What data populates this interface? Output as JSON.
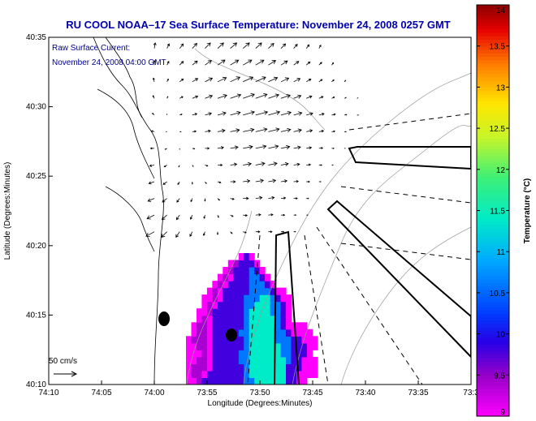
{
  "title": "RU COOL  NOAA–17  Sea Surface Temperature:  November 24, 2008 0257 GMT",
  "annotation": {
    "line1": "Raw Surface Current:",
    "line2": "November 24, 2008 04:00 GMT"
  },
  "scale_label": "50 cm/s",
  "colors": {
    "title": "#0000b0",
    "annotation": "#00008b",
    "land": "#ffffff",
    "axes": "#000000"
  },
  "icons": [
    "scale-arrow-icon",
    "station-marker-icon"
  ],
  "chart_data": {
    "type": "heatmap",
    "title": "RU COOL  NOAA–17  Sea Surface Temperature:  November 24, 2008 0257 GMT",
    "xlabel": "Longitude (Degrees:Minutes)",
    "ylabel": "Latitude (Degrees:Minutes)",
    "x_ticks": [
      {
        "v": -74.1667,
        "label": "74:10"
      },
      {
        "v": -74.0833,
        "label": "74:05"
      },
      {
        "v": -74.0,
        "label": "74:00"
      },
      {
        "v": -73.9167,
        "label": "73:55"
      },
      {
        "v": -73.8333,
        "label": "73:50"
      },
      {
        "v": -73.75,
        "label": "73:45"
      },
      {
        "v": -73.6667,
        "label": "73:40"
      },
      {
        "v": -73.5833,
        "label": "73:35"
      },
      {
        "v": -73.5,
        "label": "73:3"
      }
    ],
    "y_ticks": [
      {
        "v": 40.5833,
        "label": "40:35"
      },
      {
        "v": 40.5,
        "label": "40:30"
      },
      {
        "v": 40.4167,
        "label": "40:25"
      },
      {
        "v": 40.3333,
        "label": "40:20"
      },
      {
        "v": 40.25,
        "label": "40:15"
      },
      {
        "v": 40.1667,
        "label": "40:10"
      }
    ],
    "xlim": [
      -74.1667,
      -73.5
    ],
    "ylim": [
      40.1667,
      40.5833
    ],
    "colorbar": {
      "label": "Temperature (°C)",
      "range": [
        9,
        14
      ],
      "ticks": [
        {
          "v": 9,
          "label": "9"
        },
        {
          "v": 9.5,
          "label": "9.5"
        },
        {
          "v": 10,
          "label": "10"
        },
        {
          "v": 10.5,
          "label": "10.5"
        },
        {
          "v": 11,
          "label": "11"
        },
        {
          "v": 11.5,
          "label": "11.5"
        },
        {
          "v": 12,
          "label": "12"
        },
        {
          "v": 12.5,
          "label": "12.5"
        },
        {
          "v": 13,
          "label": "13"
        },
        {
          "v": 13.5,
          "label": "13.5"
        },
        {
          "v": 14,
          "label": "14"
        }
      ]
    },
    "sst_grid": {
      "lon0": -73.95,
      "lat0": 40.1667,
      "dlon": 0.0083,
      "dlat": 0.0083,
      "rows": [
        "aa9bbbbbbbbccddddddbbaa.....",
        "a99abbbbbbbcdddddddbbaaaa...",
        "a999abbbbbbcdddddddbbbaaa...",
        "aa99abbbbbccdddddddcbbaaa...",
        "aaa9abbbbbccddddddccbbba....",
        "aa99abbbbbbcddddddccbbbaa...",
        "a999abbbbbbcdddddcccbbaaa...",
        ".a99abbbbbccdddddccbaaaa....",
        ".a99abbbbbbcdddddcbaaaa.....",
        "..a9abbbbbbcdddddcba........",
        "..aa9bbbbbbcddddccba........",
        "...a9abbbbbccdddccba........",
        "...aa9abbbbcccddcbaa........",
        "....a9abbbbbccccbaa.........",
        ".....a9abbbbcccba...........",
        "......a9abbbccba............",
        ".......a9bbbcba.............",
        "........a9bbba..............",
        "..........aba...............",
        "............................"
      ],
      "legend": {
        "a": 9.0,
        "9": 9.4,
        "b": 9.8,
        "c": 10.6,
        "d": 11.4
      }
    },
    "currents": {
      "lon0": -74.0,
      "lat0": 40.35,
      "dlon": 0.02,
      "dlat": 0.02,
      "u": [
        [
          -18,
          -12,
          -8,
          -5,
          -3,
          0,
          4,
          7,
          9,
          8,
          6,
          4,
          0,
          0,
          0,
          0,
          0,
          0,
          0,
          0,
          0,
          0
        ],
        [
          -16,
          -11,
          -7,
          -4,
          -2,
          2,
          6,
          9,
          11,
          10,
          8,
          5,
          3,
          0,
          0,
          0,
          0,
          0,
          0,
          0,
          0,
          0
        ],
        [
          -14,
          -10,
          -6,
          -3,
          0,
          4,
          8,
          12,
          14,
          13,
          10,
          8,
          5,
          0,
          0,
          0,
          0,
          0,
          0,
          0,
          0,
          0
        ],
        [
          -12,
          -8,
          -4,
          0,
          3,
          7,
          11,
          15,
          17,
          16,
          13,
          10,
          7,
          4,
          0,
          0,
          0,
          0,
          0,
          0,
          0,
          0
        ],
        [
          -10,
          -6,
          -2,
          2,
          6,
          10,
          14,
          18,
          20,
          19,
          16,
          13,
          9,
          6,
          3,
          0,
          0,
          0,
          0,
          0,
          0,
          0
        ],
        [
          -8,
          -4,
          0,
          5,
          9,
          13,
          17,
          21,
          23,
          22,
          19,
          15,
          11,
          8,
          5,
          2,
          0,
          0,
          0,
          0,
          0,
          0
        ],
        [
          -6,
          -2,
          3,
          8,
          12,
          16,
          20,
          24,
          25,
          24,
          21,
          17,
          13,
          10,
          7,
          4,
          0,
          0,
          0,
          0,
          0,
          0
        ],
        [
          -4,
          0,
          5,
          10,
          14,
          18,
          22,
          25,
          26,
          25,
          22,
          18,
          14,
          11,
          8,
          5,
          3,
          0,
          0,
          0,
          0,
          0
        ],
        [
          -3,
          2,
          7,
          12,
          16,
          20,
          23,
          25,
          25,
          23,
          20,
          16,
          12,
          9,
          6,
          4,
          2,
          0,
          0,
          0,
          0,
          0
        ],
        [
          -2,
          3,
          8,
          12,
          16,
          19,
          21,
          22,
          22,
          20,
          17,
          14,
          10,
          7,
          5,
          3,
          0,
          0,
          0,
          0,
          0,
          0
        ],
        [
          0,
          4,
          8,
          11,
          14,
          16,
          18,
          19,
          18,
          16,
          14,
          11,
          8,
          6,
          4,
          0,
          0,
          0,
          0,
          0,
          0,
          0
        ],
        [
          2,
          5,
          8,
          10,
          12,
          13,
          14,
          14,
          13,
          12,
          10,
          8,
          6,
          4,
          0,
          0,
          0,
          0,
          0,
          0,
          0,
          0
        ]
      ],
      "v": [
        [
          -10,
          -12,
          -12,
          -10,
          -8,
          -6,
          -4,
          -2,
          0,
          0,
          0,
          0,
          0,
          0,
          0,
          0,
          0,
          0,
          0,
          0,
          0,
          0
        ],
        [
          -8,
          -10,
          -10,
          -9,
          -7,
          -5,
          -3,
          -1,
          1,
          1,
          0,
          0,
          0,
          0,
          0,
          0,
          0,
          0,
          0,
          0,
          0,
          0
        ],
        [
          -6,
          -8,
          -8,
          -7,
          -6,
          -4,
          -2,
          0,
          2,
          2,
          1,
          0,
          0,
          0,
          0,
          0,
          0,
          0,
          0,
          0,
          0,
          0
        ],
        [
          -4,
          -6,
          -6,
          -5,
          -4,
          -2,
          0,
          2,
          3,
          3,
          2,
          1,
          0,
          0,
          0,
          0,
          0,
          0,
          0,
          0,
          0,
          0
        ],
        [
          -2,
          -4,
          -4,
          -3,
          -2,
          0,
          2,
          3,
          4,
          4,
          3,
          2,
          1,
          0,
          0,
          0,
          0,
          0,
          0,
          0,
          0,
          0
        ],
        [
          0,
          -2,
          -2,
          -1,
          0,
          2,
          3,
          4,
          5,
          5,
          4,
          3,
          2,
          1,
          0,
          0,
          0,
          0,
          0,
          0,
          0,
          0
        ],
        [
          2,
          0,
          0,
          1,
          2,
          3,
          4,
          5,
          6,
          6,
          5,
          4,
          3,
          2,
          1,
          0,
          0,
          0,
          0,
          0,
          0,
          0
        ],
        [
          4,
          2,
          2,
          3,
          4,
          5,
          6,
          7,
          7,
          7,
          6,
          5,
          4,
          3,
          2,
          1,
          0,
          0,
          0,
          0,
          0,
          0
        ],
        [
          6,
          4,
          4,
          5,
          6,
          7,
          8,
          9,
          9,
          8,
          7,
          6,
          5,
          4,
          3,
          2,
          1,
          0,
          0,
          0,
          0,
          0
        ],
        [
          8,
          6,
          6,
          7,
          8,
          9,
          10,
          10,
          10,
          9,
          8,
          7,
          6,
          5,
          4,
          3,
          0,
          0,
          0,
          0,
          0,
          0
        ],
        [
          10,
          8,
          8,
          9,
          10,
          11,
          11,
          11,
          11,
          10,
          9,
          8,
          7,
          6,
          5,
          0,
          0,
          0,
          0,
          0,
          0,
          0
        ],
        [
          12,
          10,
          10,
          11,
          12,
          12,
          12,
          12,
          12,
          11,
          10,
          9,
          8,
          7,
          0,
          0,
          0,
          0,
          0,
          0,
          0,
          0
        ]
      ],
      "scale_cm_s": 50
    }
  }
}
